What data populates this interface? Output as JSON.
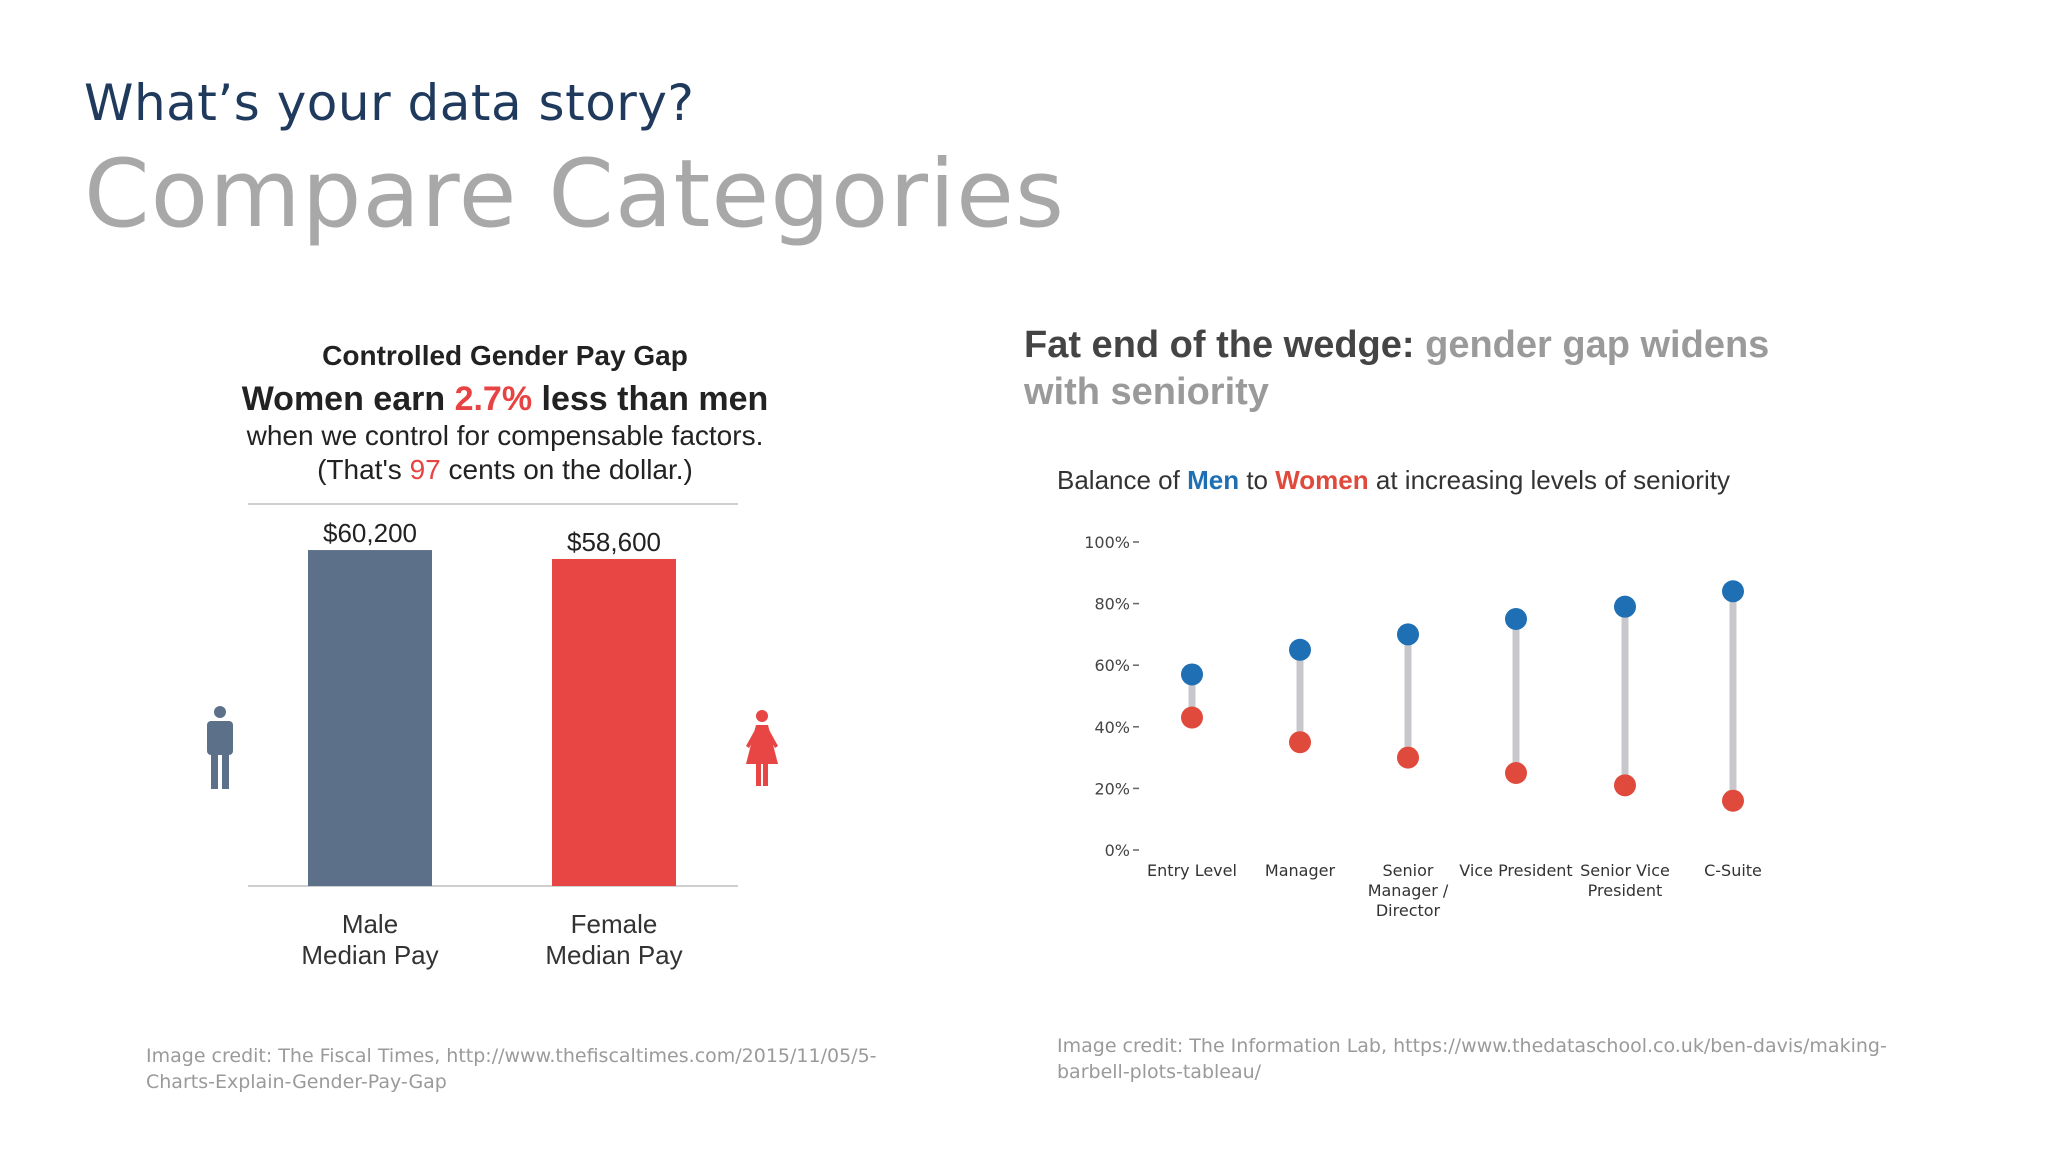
{
  "header": {
    "kicker": "What’s your data story?",
    "headline": "Compare Categories"
  },
  "left": {
    "title": "Controlled Gender Pay Gap",
    "line2_pre": "Women earn ",
    "line2_pct": "2.7%",
    "line2_post": " less than men",
    "line3": "when we control for compensable factors.",
    "line4_pre": "(That's ",
    "line4_num": "97",
    "line4_post": " cents on the dollar.)",
    "credit": "Image credit: The Fiscal Times, http://www.thefiscaltimes.com/2015/11/05/5-Charts-Explain-Gender-Pay-Gap"
  },
  "right": {
    "title_dark": "Fat end of the wedge: ",
    "title_grey": "gender gap widens with seniority",
    "sub_pre": "Balance of ",
    "sub_men": "Men",
    "sub_mid": " to ",
    "sub_women": "Women",
    "sub_post": " at increasing levels of seniority",
    "credit": "Image credit: The Information Lab, https://www.thedataschool.co.uk/ben-davis/making-barbell-plots-tableau/"
  },
  "chart_data": [
    {
      "type": "bar",
      "title": "Controlled Gender Pay Gap",
      "categories": [
        "Male Median Pay",
        "Female Median Pay"
      ],
      "category_lines": [
        [
          "Male",
          "Median Pay"
        ],
        [
          "Female",
          "Median Pay"
        ]
      ],
      "values": [
        60200,
        58600
      ],
      "value_labels": [
        "$60,200",
        "$58,600"
      ],
      "colors": [
        "#5c7189",
        "#e84545"
      ],
      "ylim": [
        0,
        62000
      ],
      "icons": [
        "male-icon",
        "female-icon"
      ]
    },
    {
      "type": "scatter",
      "style": "barbell",
      "title": "Balance of Men to Women at increasing levels of seniority",
      "categories": [
        "Entry Level",
        "Manager",
        "Senior Manager / Director",
        "Vice President",
        "Senior Vice President",
        "C-Suite"
      ],
      "category_lines": [
        [
          "Entry Level"
        ],
        [
          "Manager"
        ],
        [
          "Senior",
          "Manager /",
          "Director"
        ],
        [
          "Vice President"
        ],
        [
          "Senior Vice",
          "President"
        ],
        [
          "C-Suite"
        ]
      ],
      "series": [
        {
          "name": "Men",
          "values": [
            57,
            65,
            70,
            75,
            79,
            84
          ],
          "color": "#1f6fb4"
        },
        {
          "name": "Women",
          "values": [
            43,
            35,
            30,
            25,
            21,
            16
          ],
          "color": "#e04a3c"
        }
      ],
      "yticks": [
        0,
        20,
        40,
        60,
        80,
        100
      ],
      "ytick_labels": [
        "0%",
        "20%",
        "40%",
        "60%",
        "80%",
        "100%"
      ],
      "ylim": [
        0,
        100
      ],
      "connector_color": "#c8c8cc"
    }
  ]
}
